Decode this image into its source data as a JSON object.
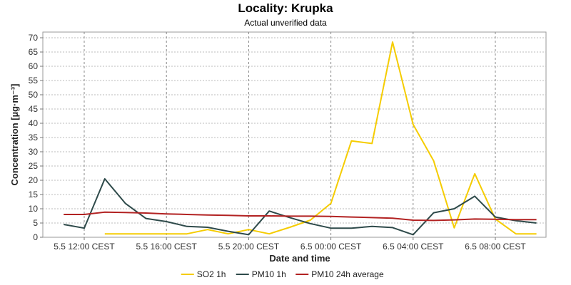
{
  "chart_data": {
    "type": "line",
    "title": "Locality: Krupka",
    "subtitle": "Actual unverified data",
    "xlabel": "Date and time",
    "ylabel": "Concentration [µg·m⁻³]",
    "ylim": [
      0,
      72
    ],
    "yticks": [
      0,
      5,
      10,
      15,
      20,
      25,
      30,
      35,
      40,
      45,
      50,
      55,
      60,
      65,
      70
    ],
    "x_range_hours": [
      -1,
      22
    ],
    "x_unit": "hours since 5.5 12:00 CEST",
    "xticks": [
      {
        "pos": 0,
        "label": "5.5 12:00 CEST"
      },
      {
        "pos": 4,
        "label": "5.5 16:00 CEST"
      },
      {
        "pos": 8,
        "label": "5.5 20:00 CEST"
      },
      {
        "pos": 12,
        "label": "6.5 00:00 CEST"
      },
      {
        "pos": 16,
        "label": "6.5 04:00 CEST"
      },
      {
        "pos": 20,
        "label": "6.5 08:00 CEST"
      }
    ],
    "grid": true,
    "legend_position": "bottom",
    "series": [
      {
        "name": "SO2 1h",
        "color": "#f5cc00",
        "x": [
          1,
          2,
          3,
          4,
          5,
          6,
          7,
          8,
          9,
          10,
          11,
          12,
          13,
          14,
          15,
          16,
          17,
          18,
          19,
          20,
          21,
          22
        ],
        "values": [
          1.2,
          1.2,
          1.2,
          1.2,
          1.2,
          2.7,
          1.2,
          2.7,
          1.2,
          3.5,
          6.0,
          11.9,
          33.8,
          32.9,
          68.5,
          39.6,
          26.8,
          3.3,
          22.3,
          6.4,
          1.2,
          1.2
        ]
      },
      {
        "name": "PM10 1h",
        "color": "#2e4a4a",
        "x": [
          -1,
          0,
          1,
          2,
          3,
          4,
          5,
          6,
          7,
          8,
          9,
          10,
          11,
          12,
          13,
          14,
          15,
          16,
          17,
          18,
          19,
          20,
          21,
          22
        ],
        "values": [
          4.5,
          3.2,
          20.5,
          11.9,
          6.6,
          5.5,
          3.8,
          3.5,
          2.1,
          0.9,
          9.2,
          6.9,
          4.8,
          3.2,
          3.2,
          3.8,
          3.4,
          0.9,
          8.6,
          10.0,
          14.4,
          7.1,
          5.8,
          5.0
        ]
      },
      {
        "name": "PM10 24h average",
        "color": "#b22222",
        "x": [
          -1,
          0,
          1,
          2,
          3,
          4,
          5,
          6,
          7,
          8,
          9,
          10,
          11,
          12,
          13,
          14,
          15,
          16,
          17,
          18,
          19,
          20,
          21,
          22
        ],
        "values": [
          8.0,
          8.0,
          8.8,
          8.7,
          8.5,
          8.2,
          8.0,
          7.8,
          7.7,
          7.5,
          7.5,
          7.4,
          7.4,
          7.3,
          7.1,
          6.9,
          6.7,
          6.0,
          5.9,
          6.1,
          6.4,
          6.3,
          6.2,
          6.2
        ]
      }
    ]
  }
}
